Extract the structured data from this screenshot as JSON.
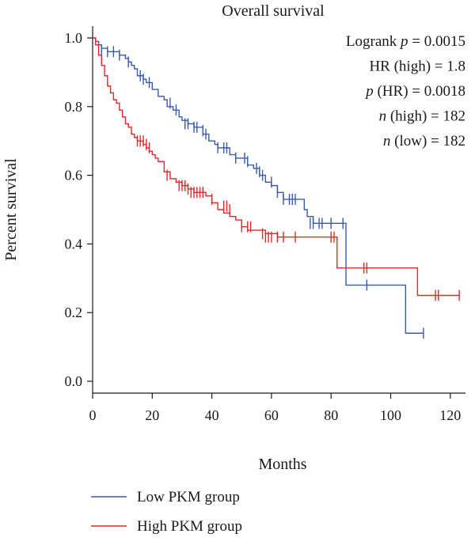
{
  "chart_data": {
    "type": "line",
    "title": "Overall survival",
    "xlabel": "Months",
    "ylabel": "Percent survival",
    "xlim": [
      0,
      125
    ],
    "ylim": [
      -0.04,
      1.04
    ],
    "x_ticks": [
      "0",
      "20",
      "40",
      "60",
      "80",
      "100",
      "120"
    ],
    "y_ticks": [
      "0.0",
      "0.2",
      "0.4",
      "0.6",
      "0.8",
      "1.0"
    ],
    "grid": false,
    "annotations": [
      {
        "prefix": "Logrank ",
        "italic": "p",
        "suffix": " = 0.0015"
      },
      {
        "prefix": "HR (high) = 1.8",
        "italic": "",
        "suffix": ""
      },
      {
        "prefix": "",
        "italic": "p",
        "suffix": " (HR) = 0.0018"
      },
      {
        "prefix": "",
        "italic": "n",
        "suffix": " (high) = 182"
      },
      {
        "prefix": "",
        "italic": "n",
        "suffix": " (low) = 182"
      }
    ],
    "legend_position": "bottom",
    "series": [
      {
        "name": "Low PKM group",
        "color": "#3a5bad",
        "x": [
          0,
          1,
          2,
          3,
          5,
          8,
          9,
          11,
          12,
          13,
          14,
          15,
          17,
          18,
          20,
          22,
          24,
          25,
          27,
          29,
          30,
          32,
          34,
          36,
          37,
          39,
          41,
          42,
          44,
          46,
          48,
          50,
          52,
          54,
          56,
          58,
          60,
          62,
          64,
          66,
          68,
          71,
          72,
          74,
          76,
          78,
          80,
          82,
          85,
          88,
          92,
          96,
          100,
          105,
          108,
          111
        ],
        "y": [
          1.0,
          0.99,
          0.98,
          0.97,
          0.96,
          0.96,
          0.95,
          0.94,
          0.93,
          0.92,
          0.91,
          0.89,
          0.88,
          0.87,
          0.85,
          0.83,
          0.82,
          0.8,
          0.79,
          0.77,
          0.76,
          0.75,
          0.74,
          0.74,
          0.72,
          0.7,
          0.69,
          0.68,
          0.68,
          0.66,
          0.65,
          0.65,
          0.63,
          0.62,
          0.6,
          0.58,
          0.57,
          0.55,
          0.53,
          0.53,
          0.53,
          0.5,
          0.48,
          0.46,
          0.46,
          0.46,
          0.46,
          0.46,
          0.28,
          0.28,
          0.28,
          0.28,
          0.28,
          0.14,
          0.14,
          0.14
        ],
        "censored": [
          [
            3,
            0.96
          ],
          [
            5,
            0.96
          ],
          [
            7,
            0.96
          ],
          [
            9,
            0.95
          ],
          [
            12,
            0.93
          ],
          [
            16,
            0.89
          ],
          [
            17,
            0.88
          ],
          [
            19,
            0.87
          ],
          [
            26,
            0.81
          ],
          [
            28,
            0.79
          ],
          [
            31,
            0.75
          ],
          [
            32,
            0.75
          ],
          [
            34,
            0.74
          ],
          [
            35,
            0.74
          ],
          [
            37,
            0.73
          ],
          [
            38,
            0.72
          ],
          [
            42,
            0.68
          ],
          [
            44,
            0.68
          ],
          [
            45,
            0.68
          ],
          [
            48,
            0.65
          ],
          [
            51,
            0.65
          ],
          [
            52,
            0.64
          ],
          [
            55,
            0.62
          ],
          [
            56,
            0.61
          ],
          [
            57,
            0.6
          ],
          [
            60,
            0.58
          ],
          [
            62,
            0.55
          ],
          [
            64,
            0.53
          ],
          [
            66,
            0.53
          ],
          [
            67,
            0.53
          ],
          [
            68,
            0.53
          ],
          [
            73,
            0.46
          ],
          [
            74,
            0.46
          ],
          [
            76,
            0.46
          ],
          [
            77,
            0.46
          ],
          [
            80,
            0.46
          ],
          [
            84,
            0.46
          ],
          [
            92,
            0.28
          ],
          [
            111,
            0.14
          ]
        ]
      },
      {
        "name": "High PKM group",
        "color": "#e8262a",
        "x": [
          0,
          1,
          2,
          3,
          4,
          5,
          6,
          7,
          8,
          9,
          10,
          11,
          12,
          13,
          14,
          15,
          17,
          18,
          19,
          20,
          21,
          22,
          24,
          26,
          28,
          30,
          32,
          34,
          36,
          38,
          40,
          42,
          44,
          46,
          48,
          50,
          52,
          55,
          58,
          62,
          66,
          70,
          74,
          78,
          82,
          84,
          86,
          90,
          95,
          100,
          105,
          109,
          115,
          123
        ],
        "y": [
          1.0,
          0.98,
          0.95,
          0.92,
          0.89,
          0.86,
          0.84,
          0.82,
          0.81,
          0.79,
          0.77,
          0.75,
          0.74,
          0.72,
          0.71,
          0.7,
          0.69,
          0.68,
          0.67,
          0.66,
          0.65,
          0.64,
          0.61,
          0.59,
          0.58,
          0.57,
          0.56,
          0.55,
          0.55,
          0.54,
          0.52,
          0.5,
          0.49,
          0.48,
          0.47,
          0.45,
          0.44,
          0.44,
          0.43,
          0.42,
          0.42,
          0.42,
          0.42,
          0.42,
          0.33,
          0.33,
          0.33,
          0.33,
          0.33,
          0.33,
          0.33,
          0.25,
          0.25,
          0.25
        ],
        "censored": [
          [
            15,
            0.7
          ],
          [
            16,
            0.7
          ],
          [
            17,
            0.7
          ],
          [
            18,
            0.69
          ],
          [
            19,
            0.68
          ],
          [
            25,
            0.6
          ],
          [
            29,
            0.57
          ],
          [
            30,
            0.57
          ],
          [
            31,
            0.57
          ],
          [
            32,
            0.56
          ],
          [
            33,
            0.55
          ],
          [
            34,
            0.55
          ],
          [
            35,
            0.55
          ],
          [
            36,
            0.55
          ],
          [
            37,
            0.55
          ],
          [
            40,
            0.53
          ],
          [
            44,
            0.51
          ],
          [
            45,
            0.51
          ],
          [
            46,
            0.5
          ],
          [
            50,
            0.45
          ],
          [
            52,
            0.45
          ],
          [
            53,
            0.45
          ],
          [
            57,
            0.43
          ],
          [
            58,
            0.42
          ],
          [
            59,
            0.42
          ],
          [
            60,
            0.42
          ],
          [
            62,
            0.42
          ],
          [
            64,
            0.42
          ],
          [
            68,
            0.42
          ],
          [
            80,
            0.42
          ],
          [
            81,
            0.42
          ],
          [
            91,
            0.33
          ],
          [
            92,
            0.33
          ],
          [
            115,
            0.25
          ],
          [
            116,
            0.25
          ],
          [
            123,
            0.25
          ]
        ]
      }
    ]
  }
}
